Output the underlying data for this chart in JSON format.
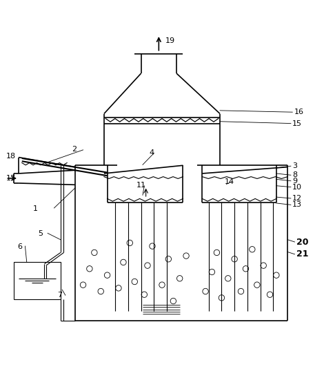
{
  "fig_width": 4.7,
  "fig_height": 5.44,
  "dpi": 100,
  "bg_color": "#ffffff",
  "line_color": "#000000",
  "line_width": 1.2,
  "thin_lw": 0.8
}
